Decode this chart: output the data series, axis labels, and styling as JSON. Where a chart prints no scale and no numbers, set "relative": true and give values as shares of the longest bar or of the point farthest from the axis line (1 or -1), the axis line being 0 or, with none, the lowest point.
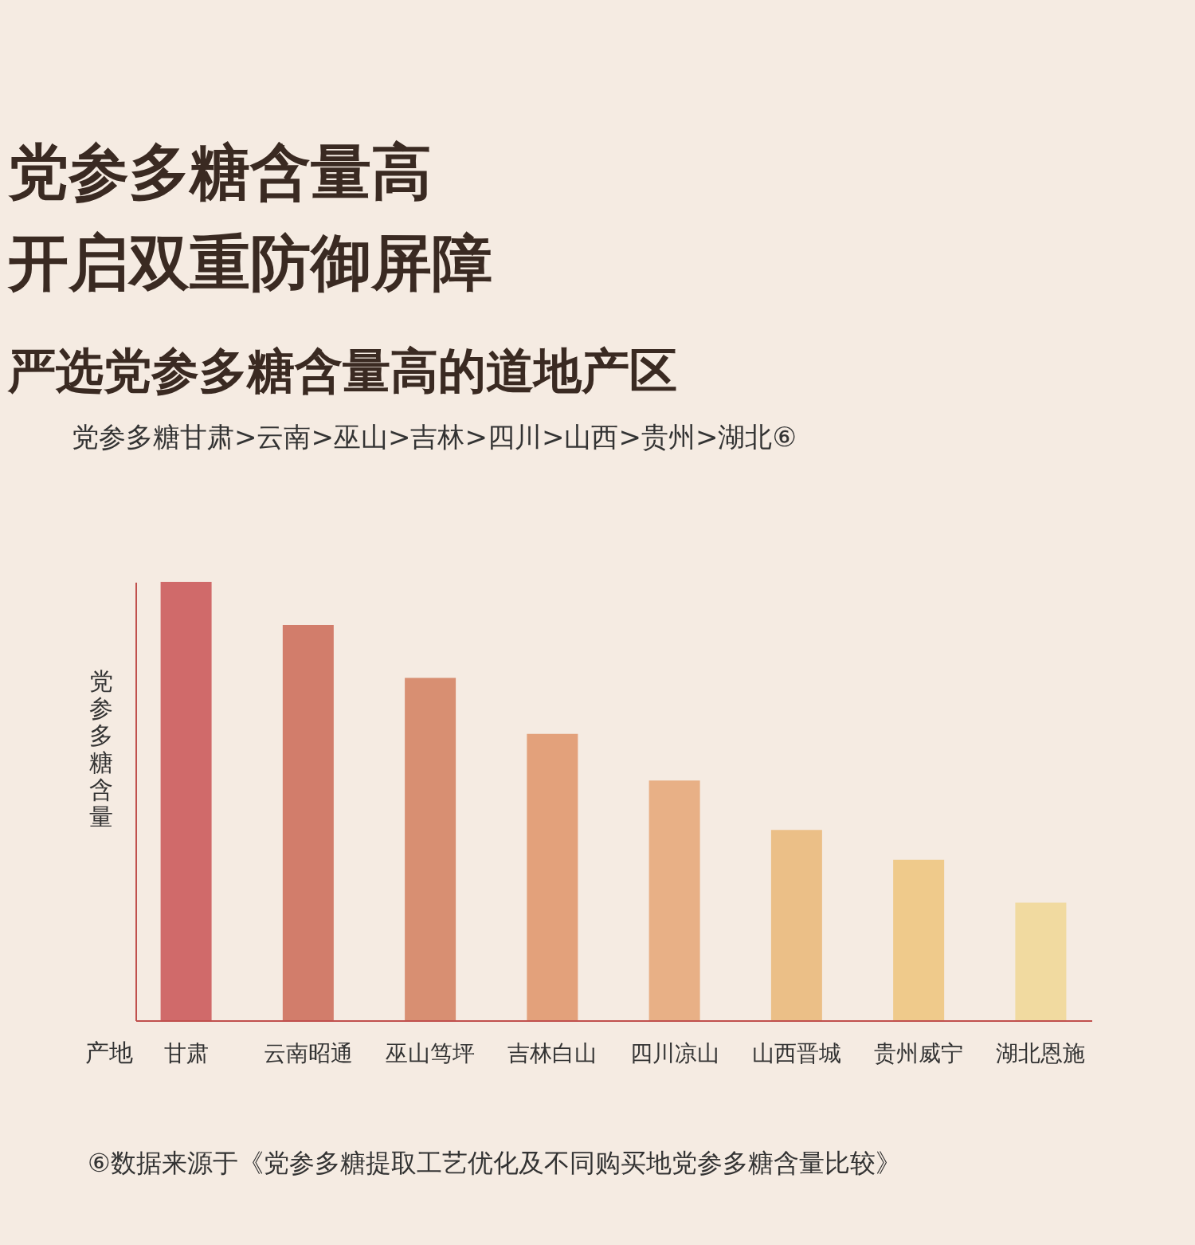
{
  "chart_data": {
    "type": "bar",
    "relative": true,
    "title": "党参多糖含量高开启双重防御屏障",
    "subtitle": "严选党参多糖含量高的道地产区",
    "xlabel": "产地",
    "ylabel": "党参多糖含量",
    "categories": [
      "甘肃",
      "云南昭通",
      "巫山笃坪",
      "吉林白山",
      "四川凉山",
      "山西晋城",
      "贵州威宁",
      "湖北恩施"
    ],
    "values": [
      1,
      0.902,
      0.781,
      0.653,
      0.547,
      0.434,
      0.366,
      0.268
    ],
    "colors": [
      "#d06a6a",
      "#d27d6b",
      "#d88f72",
      "#e3a17b",
      "#e8b086",
      "#ebbf87",
      "#efca8b",
      "#f1daa0"
    ],
    "grid": false,
    "annotations": [
      "党参多糖甘肃>云南>巫山>吉林>四川>山西>贵州>湖北⑥",
      "⑥数据来源于《党参多糖提取工艺优化及不同购买地党参多糖含量比较》"
    ]
  }
}
